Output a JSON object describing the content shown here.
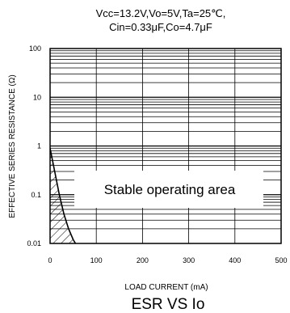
{
  "chart_data": {
    "type": "area",
    "conditions_line1": "Vcc=13.2V,Vo=5V,Ta=25℃,",
    "conditions_line2": "Cin=0.33μF,Co=4.7μF",
    "xlabel": "LOAD CURRENT (mA)",
    "ylabel": "EFFECTIVE SERIES RESISTANCE (Ω)",
    "caption": "ESR VS Io",
    "x_ticks": [
      0,
      100,
      200,
      300,
      400,
      500
    ],
    "y_ticks": [
      {
        "value": 0.01,
        "label": "0.01"
      },
      {
        "value": 0.1,
        "label": "0.1"
      },
      {
        "value": 1,
        "label": "1"
      },
      {
        "value": 10,
        "label": "10"
      },
      {
        "value": 100,
        "label": "100"
      }
    ],
    "xlim": [
      0,
      500
    ],
    "ylim": [
      0.01,
      100
    ],
    "y_scale": "log",
    "grid": true,
    "region_label": "Stable operating area",
    "unstable_boundary": {
      "name": "",
      "hatched": true,
      "points": [
        [
          0,
          0.9
        ],
        [
          10,
          0.3
        ],
        [
          20,
          0.1
        ],
        [
          30,
          0.04
        ],
        [
          40,
          0.02
        ],
        [
          50,
          0.012
        ],
        [
          55,
          0.01
        ]
      ]
    }
  }
}
